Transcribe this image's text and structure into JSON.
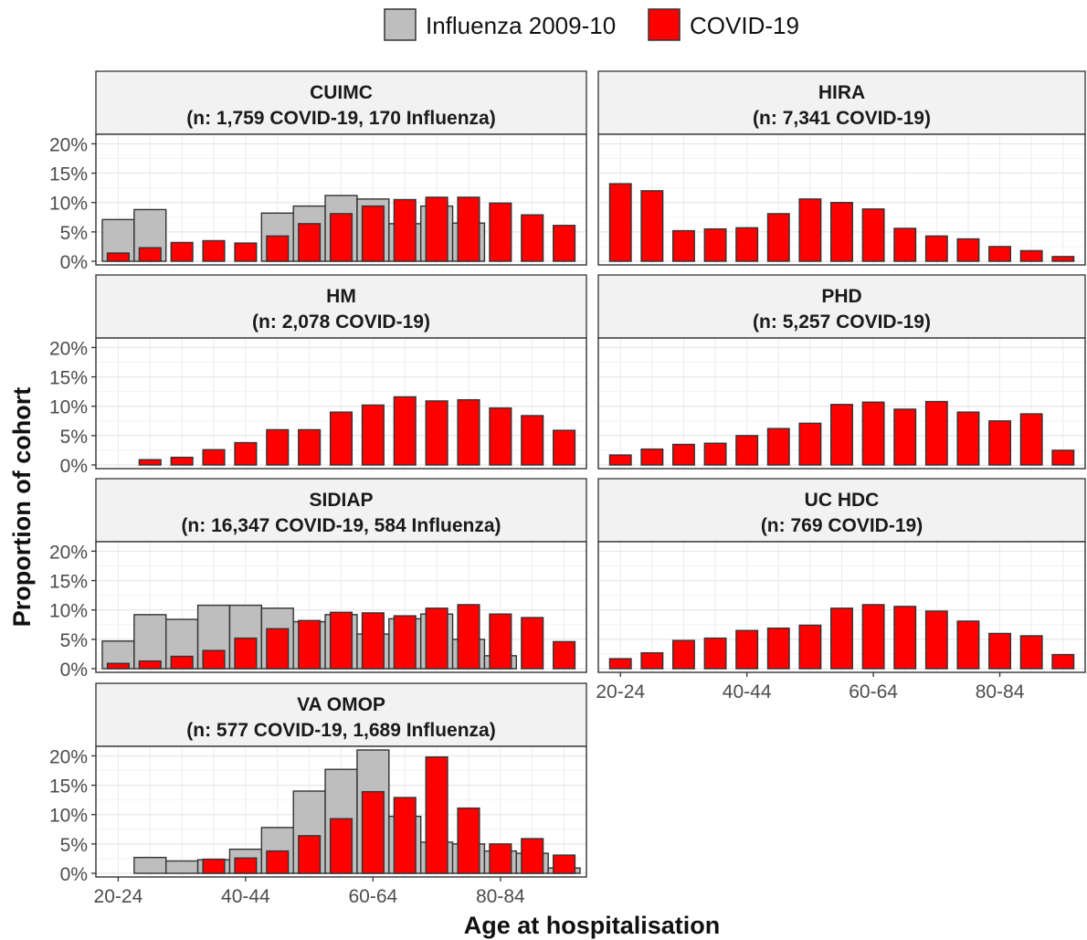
{
  "chart_data": {
    "type": "bar",
    "legend": {
      "placement": "top",
      "entries": [
        {
          "name": "Influenza 2009-10",
          "color": "#BEBEBE"
        },
        {
          "name": "COVID-19",
          "color": "#FF0000"
        }
      ]
    },
    "xlabel": "Age at hospitalisation",
    "ylabel": "Proportion of cohort",
    "ylim": [
      0,
      0.21
    ],
    "yticks": [
      {
        "value": 0,
        "label": "0%"
      },
      {
        "value": 0.05,
        "label": "5%"
      },
      {
        "value": 0.1,
        "label": "10%"
      },
      {
        "value": 0.15,
        "label": "15%"
      },
      {
        "value": 0.2,
        "label": "20%"
      }
    ],
    "categories": [
      "20-24",
      "25-29",
      "30-34",
      "35-39",
      "40-44",
      "45-49",
      "50-54",
      "55-59",
      "60-64",
      "65-69",
      "70-74",
      "75-79",
      "80-84",
      "85-89",
      "90-94"
    ],
    "xtick_labels": [
      {
        "category": "20-24",
        "label": "20-24"
      },
      {
        "category": "40-44",
        "label": "40-44"
      },
      {
        "category": "60-64",
        "label": "60-64"
      },
      {
        "category": "80-84",
        "label": "80-84"
      }
    ],
    "grid": true,
    "panels": [
      {
        "title": "CUIMC",
        "subtitle": "(n: 1,759 COVID-19, 170 Influenza)",
        "influenza": [
          0.071,
          0.088,
          null,
          null,
          null,
          0.082,
          0.094,
          0.112,
          0.106,
          0.064,
          0.094,
          0.065,
          null,
          null,
          null
        ],
        "covid": [
          0.014,
          0.023,
          0.032,
          0.035,
          0.031,
          0.043,
          0.064,
          0.081,
          0.094,
          0.105,
          0.109,
          0.109,
          0.099,
          0.079,
          0.061
        ]
      },
      {
        "title": "HIRA",
        "subtitle": "(n: 7,341 COVID-19)",
        "influenza": [],
        "covid": [
          0.132,
          0.12,
          0.052,
          0.055,
          0.057,
          0.081,
          0.106,
          0.1,
          0.089,
          0.056,
          0.043,
          0.038,
          0.025,
          0.018,
          0.008
        ]
      },
      {
        "title": "HM",
        "subtitle": "(n: 2,078 COVID-19)",
        "influenza": [],
        "covid": [
          null,
          0.009,
          0.013,
          0.026,
          0.038,
          0.06,
          0.06,
          0.09,
          0.102,
          0.116,
          0.109,
          0.111,
          0.097,
          0.084,
          0.059
        ]
      },
      {
        "title": "PHD",
        "subtitle": "(n: 5,257 COVID-19)",
        "influenza": [],
        "covid": [
          0.017,
          0.027,
          0.035,
          0.037,
          0.05,
          0.062,
          0.071,
          0.103,
          0.107,
          0.095,
          0.108,
          0.09,
          0.075,
          0.087,
          0.025
        ]
      },
      {
        "title": "SIDIAP",
        "subtitle": "(n: 16,347 COVID-19, 584 Influenza)",
        "influenza": [
          0.047,
          0.092,
          0.084,
          0.108,
          0.108,
          0.103,
          0.08,
          0.092,
          0.059,
          0.085,
          0.093,
          0.05,
          0.022,
          null,
          null
        ],
        "covid": [
          0.009,
          0.013,
          0.021,
          0.031,
          0.052,
          0.068,
          0.082,
          0.096,
          0.095,
          0.09,
          0.103,
          0.109,
          0.093,
          0.087,
          0.046
        ]
      },
      {
        "title": "UC HDC",
        "subtitle": "(n: 769 COVID-19)",
        "influenza": [],
        "covid": [
          0.017,
          0.027,
          0.048,
          0.052,
          0.065,
          0.069,
          0.074,
          0.103,
          0.109,
          0.106,
          0.098,
          0.081,
          0.06,
          0.056,
          0.024
        ]
      },
      {
        "title": "VA OMOP",
        "subtitle": "(n: 577 COVID-19, 1,689 Influenza)",
        "influenza": [
          null,
          0.027,
          0.021,
          0.023,
          0.041,
          0.078,
          0.14,
          0.177,
          0.21,
          0.097,
          0.053,
          0.05,
          0.038,
          0.034,
          0.009
        ],
        "covid": [
          null,
          null,
          null,
          0.024,
          0.026,
          0.038,
          0.064,
          0.093,
          0.139,
          0.129,
          0.198,
          0.111,
          0.05,
          0.059,
          0.031
        ]
      }
    ]
  }
}
